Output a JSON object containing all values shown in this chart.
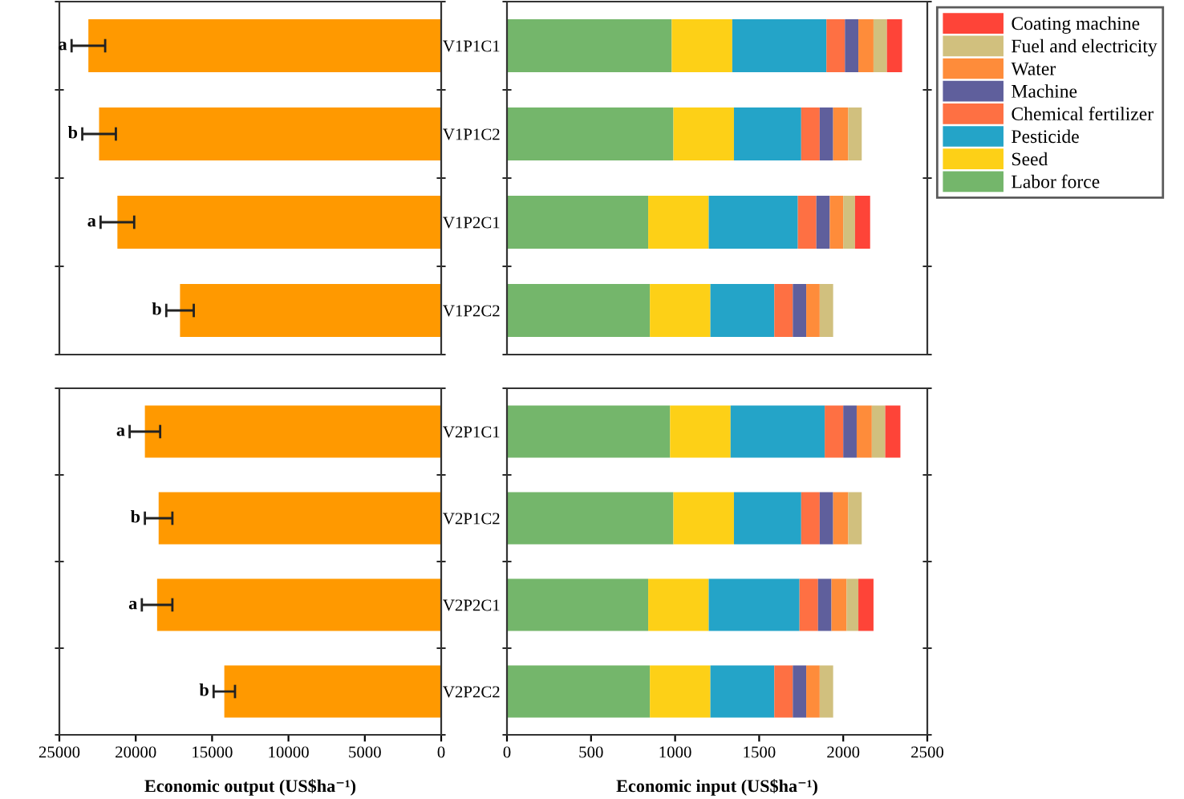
{
  "chart_data": [
    {
      "type": "bar",
      "orientation": "horizontal",
      "categories": [
        "V1P1C1",
        "V1P1C2",
        "V1P2C1",
        "V1P2C2"
      ],
      "values": [
        23100,
        22400,
        21200,
        17100
      ],
      "errors": [
        1100,
        1100,
        1100,
        900
      ],
      "color": "#ff9900",
      "xlim": [
        25000,
        0
      ],
      "xticks": [
        25000,
        20000,
        15000,
        10000,
        5000,
        0
      ],
      "tick_labels": false,
      "annotations": [
        {
          "text": "a",
          "x": 24200,
          "y": "V1P1C1"
        },
        {
          "text": "b",
          "x": 23500,
          "y": "V1P1C2"
        },
        {
          "text": "a",
          "x": 22300,
          "y": "V1P2C1"
        },
        {
          "text": "b",
          "x": 18000,
          "y": "V1P2C2"
        }
      ]
    },
    {
      "type": "bar",
      "orientation": "horizontal",
      "stacked": true,
      "categories": [
        "V1P1C1",
        "V1P1C2",
        "V1P2C1",
        "V1P2C2"
      ],
      "xlim": [
        0,
        2500
      ],
      "xticks": [
        0,
        500,
        1000,
        1500,
        2000,
        2500
      ],
      "tick_labels": "y",
      "legend": "right",
      "series": [
        {
          "name": "Labor force",
          "color": "#74b66b",
          "values": [
            980,
            990,
            840,
            850
          ]
        },
        {
          "name": "Seed",
          "color": "#fdd017",
          "values": [
            360,
            360,
            360,
            360
          ]
        },
        {
          "name": "Pesticide",
          "color": "#24a4c8",
          "values": [
            560,
            400,
            530,
            380
          ]
        },
        {
          "name": "Chemical fertilizer",
          "color": "#fe7043",
          "values": [
            110,
            110,
            110,
            110
          ]
        },
        {
          "name": "Machine",
          "color": "#5f5f9c",
          "values": [
            80,
            80,
            80,
            80
          ]
        },
        {
          "name": "Water",
          "color": "#fe8c3a",
          "values": [
            90,
            90,
            80,
            80
          ]
        },
        {
          "name": "Fuel and electricity",
          "color": "#d1c07e",
          "values": [
            80,
            80,
            70,
            80
          ]
        },
        {
          "name": "Coating machine",
          "color": "#fe4438",
          "values": [
            90,
            null,
            90,
            null
          ]
        }
      ]
    },
    {
      "type": "bar",
      "orientation": "horizontal",
      "categories": [
        "V2P1C1",
        "V2P1C2",
        "V2P2C1",
        "V2P2C2"
      ],
      "values": [
        19400,
        18500,
        18600,
        14200
      ],
      "errors": [
        1000,
        900,
        1000,
        700
      ],
      "color": "#ff9900",
      "xlim": [
        25000,
        0
      ],
      "xticks": [
        25000,
        20000,
        15000,
        10000,
        5000,
        0
      ],
      "tick_labels": "x",
      "xlabel": "Economic output (US$ha⁻¹)",
      "annotations": [
        {
          "text": "a",
          "x": 20400,
          "y": "V2P1C1"
        },
        {
          "text": "b",
          "x": 19400,
          "y": "V2P1C2"
        },
        {
          "text": "a",
          "x": 19600,
          "y": "V2P2C1"
        },
        {
          "text": "b",
          "x": 14900,
          "y": "V2P2C2"
        }
      ]
    },
    {
      "type": "bar",
      "orientation": "horizontal",
      "stacked": true,
      "categories": [
        "V2P1C1",
        "V2P1C2",
        "V2P2C1",
        "V2P2C2"
      ],
      "xlim": [
        0,
        2500
      ],
      "xticks": [
        0,
        500,
        1000,
        1500,
        2000,
        2500
      ],
      "xlabel": "Economic input (US$ha⁻¹)",
      "series": [
        {
          "color": "#74b66b",
          "values": [
            970,
            990,
            840,
            850
          ]
        },
        {
          "color": "#fdd017",
          "values": [
            360,
            360,
            360,
            360
          ]
        },
        {
          "color": "#24a4c8",
          "values": [
            560,
            400,
            540,
            380
          ]
        },
        {
          "color": "#fe7043",
          "values": [
            110,
            110,
            110,
            110
          ]
        },
        {
          "color": "#5f5f9c",
          "values": [
            80,
            80,
            80,
            80
          ]
        },
        {
          "color": "#fe8c3a",
          "values": [
            90,
            90,
            90,
            80
          ]
        },
        {
          "color": "#d1c07e",
          "values": [
            80,
            80,
            70,
            80
          ]
        },
        {
          "color": "#fe4438",
          "values": [
            90,
            null,
            90,
            null
          ]
        }
      ]
    }
  ]
}
